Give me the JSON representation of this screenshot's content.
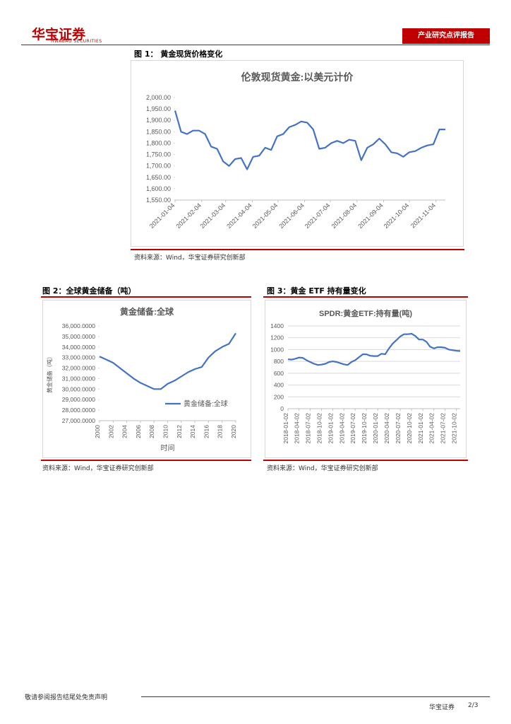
{
  "header": {
    "logo": "华宝证券",
    "logo_en": "HWABAO SECURITIES",
    "tab": "产业研究点评报告"
  },
  "figures": [
    {
      "caption": "图 1：  黄金现货价格变化",
      "source": "资料来源：Wind，华宝证券研究创新部"
    },
    {
      "caption": "图 2：全球黄金储备（吨）",
      "source": "资料来源：Wind，华宝证券研究创新部"
    },
    {
      "caption": "图 3：黄金 ETF 持有量变化",
      "source": "资料来源：Wind，华宝证券研究创新部"
    }
  ],
  "footer": {
    "disclaimer": "敬请参阅报告结尾处免责声明",
    "company": "华宝证券",
    "page": "2/3"
  },
  "chart_data": [
    {
      "type": "line",
      "title": "伦敦现货黄金:以美元计价",
      "color": "#4472c4",
      "x": [
        "2021-01-04",
        "2021-01-11",
        "2021-01-18",
        "2021-01-25",
        "2021-02-01",
        "2021-02-08",
        "2021-02-15",
        "2021-02-22",
        "2021-03-01",
        "2021-03-08",
        "2021-03-15",
        "2021-03-22",
        "2021-03-29",
        "2021-04-05",
        "2021-04-12",
        "2021-04-19",
        "2021-04-26",
        "2021-05-03",
        "2021-05-10",
        "2021-05-17",
        "2021-05-24",
        "2021-05-31",
        "2021-06-07",
        "2021-06-14",
        "2021-06-21",
        "2021-06-28",
        "2021-07-05",
        "2021-07-12",
        "2021-07-19",
        "2021-07-26",
        "2021-08-02",
        "2021-08-09",
        "2021-08-16",
        "2021-08-23",
        "2021-08-30",
        "2021-09-06",
        "2021-09-13",
        "2021-09-20",
        "2021-09-27",
        "2021-10-04",
        "2021-10-11",
        "2021-10-18",
        "2021-10-25",
        "2021-11-01",
        "2021-11-08",
        "2021-11-15"
      ],
      "values": [
        1943,
        1850,
        1840,
        1855,
        1855,
        1840,
        1785,
        1775,
        1720,
        1700,
        1730,
        1735,
        1685,
        1740,
        1745,
        1780,
        1770,
        1830,
        1840,
        1870,
        1880,
        1895,
        1890,
        1860,
        1775,
        1780,
        1800,
        1810,
        1800,
        1815,
        1810,
        1725,
        1780,
        1795,
        1820,
        1795,
        1760,
        1755,
        1740,
        1760,
        1765,
        1780,
        1790,
        1795,
        1860,
        1860
      ],
      "xlim": [
        "2021-01-04",
        "2021-11-15"
      ],
      "xticks": [
        "2021-01-04",
        "2021-02-04",
        "2021-03-04",
        "2021-04-04",
        "2021-05-04",
        "2021-06-04",
        "2021-07-04",
        "2021-08-04",
        "2021-09-04",
        "2021-10-04",
        "2021-11-04"
      ],
      "ylim": [
        1550,
        2000
      ],
      "yticks": [
        {
          "value": 1550,
          "label": "1,550.00"
        },
        {
          "value": 1600,
          "label": "1,600.00"
        },
        {
          "value": 1650,
          "label": "1,650.00"
        },
        {
          "value": 1700,
          "label": "1,700.00"
        },
        {
          "value": 1750,
          "label": "1,750.00"
        },
        {
          "value": 1800,
          "label": "1,800.00"
        },
        {
          "value": 1850,
          "label": "1,850.00"
        },
        {
          "value": 1900,
          "label": "1,900.00"
        },
        {
          "value": 1950,
          "label": "1,950.00"
        },
        {
          "value": 2000,
          "label": "2,000.00"
        }
      ],
      "grid": false
    },
    {
      "type": "line",
      "title": "黄金储备:全球",
      "xlabel": "时间",
      "ylabel": "黄金储备（吨）",
      "legend": "lower right",
      "x": [
        2000,
        2001,
        2002,
        2003,
        2004,
        2005,
        2006,
        2007,
        2008,
        2009,
        2010,
        2011,
        2012,
        2013,
        2014,
        2015,
        2016,
        2017,
        2018,
        2019,
        2020
      ],
      "series": [
        {
          "name": "黄金储备:全球",
          "color": "#4472c4",
          "values": [
            33100,
            32800,
            32500,
            32000,
            31500,
            31000,
            30600,
            30300,
            30000,
            30000,
            30500,
            30800,
            31200,
            31600,
            31900,
            32100,
            33000,
            33600,
            34000,
            34300,
            35300
          ]
        }
      ],
      "xlim": [
        2000,
        2020
      ],
      "xticks": [
        2000,
        2002,
        2004,
        2006,
        2008,
        2010,
        2012,
        2014,
        2016,
        2018,
        2020
      ],
      "ylim": [
        27000,
        36000
      ],
      "yticks": [
        {
          "value": 27000,
          "label": "27,000.0000"
        },
        {
          "value": 28000,
          "label": "28,000.0000"
        },
        {
          "value": 29000,
          "label": "29,000.0000"
        },
        {
          "value": 30000,
          "label": "30,000.0000"
        },
        {
          "value": 31000,
          "label": "31,000.0000"
        },
        {
          "value": 32000,
          "label": "32,000.0000"
        },
        {
          "value": 33000,
          "label": "33,000.0000"
        },
        {
          "value": 34000,
          "label": "34,000.0000"
        },
        {
          "value": 35000,
          "label": "35,000.0000"
        },
        {
          "value": 36000,
          "label": "36,000.0000"
        }
      ],
      "grid": false
    },
    {
      "type": "line",
      "title": "SPDR:黄金ETF:持有量(吨)",
      "color": "#4472c4",
      "x": [
        "2018-01-02",
        "2018-02-02",
        "2018-03-02",
        "2018-04-02",
        "2018-05-02",
        "2018-06-02",
        "2018-07-02",
        "2018-08-02",
        "2018-09-02",
        "2018-10-02",
        "2018-11-02",
        "2018-12-02",
        "2019-01-02",
        "2019-02-02",
        "2019-03-02",
        "2019-04-02",
        "2019-05-02",
        "2019-06-02",
        "2019-07-02",
        "2019-08-02",
        "2019-09-02",
        "2019-10-02",
        "2019-11-02",
        "2019-12-02",
        "2020-01-02",
        "2020-02-02",
        "2020-03-02",
        "2020-04-02",
        "2020-05-02",
        "2020-06-02",
        "2020-07-02",
        "2020-08-02",
        "2020-09-02",
        "2020-10-02",
        "2020-11-02",
        "2020-12-02",
        "2021-01-02",
        "2021-02-02",
        "2021-03-02",
        "2021-04-02",
        "2021-05-02",
        "2021-06-02",
        "2021-07-02",
        "2021-08-02",
        "2021-09-02",
        "2021-10-02",
        "2021-11-02"
      ],
      "values": [
        835,
        830,
        845,
        865,
        860,
        820,
        790,
        760,
        740,
        745,
        760,
        790,
        800,
        790,
        770,
        750,
        740,
        790,
        820,
        870,
        920,
        920,
        895,
        890,
        890,
        930,
        920,
        1020,
        1100,
        1160,
        1220,
        1260,
        1260,
        1270,
        1230,
        1170,
        1170,
        1130,
        1050,
        1020,
        1040,
        1040,
        1030,
        1000,
        990,
        980,
        975
      ],
      "xlim": [
        "2018-01-02",
        "2021-11-02"
      ],
      "xticks": [
        "2018-01-02",
        "2018-04-02",
        "2018-07-02",
        "2018-10-02",
        "2019-01-02",
        "2019-04-02",
        "2019-07-02",
        "2019-10-02",
        "2020-01-02",
        "2020-04-02",
        "2020-07-02",
        "2020-10-02",
        "2021-01-02",
        "2021-04-02",
        "2021-07-02",
        "2021-10-02"
      ],
      "ylim": [
        0,
        1400
      ],
      "yticks": [
        0,
        200,
        400,
        600,
        800,
        1000,
        1200,
        1400
      ],
      "grid": true
    }
  ]
}
